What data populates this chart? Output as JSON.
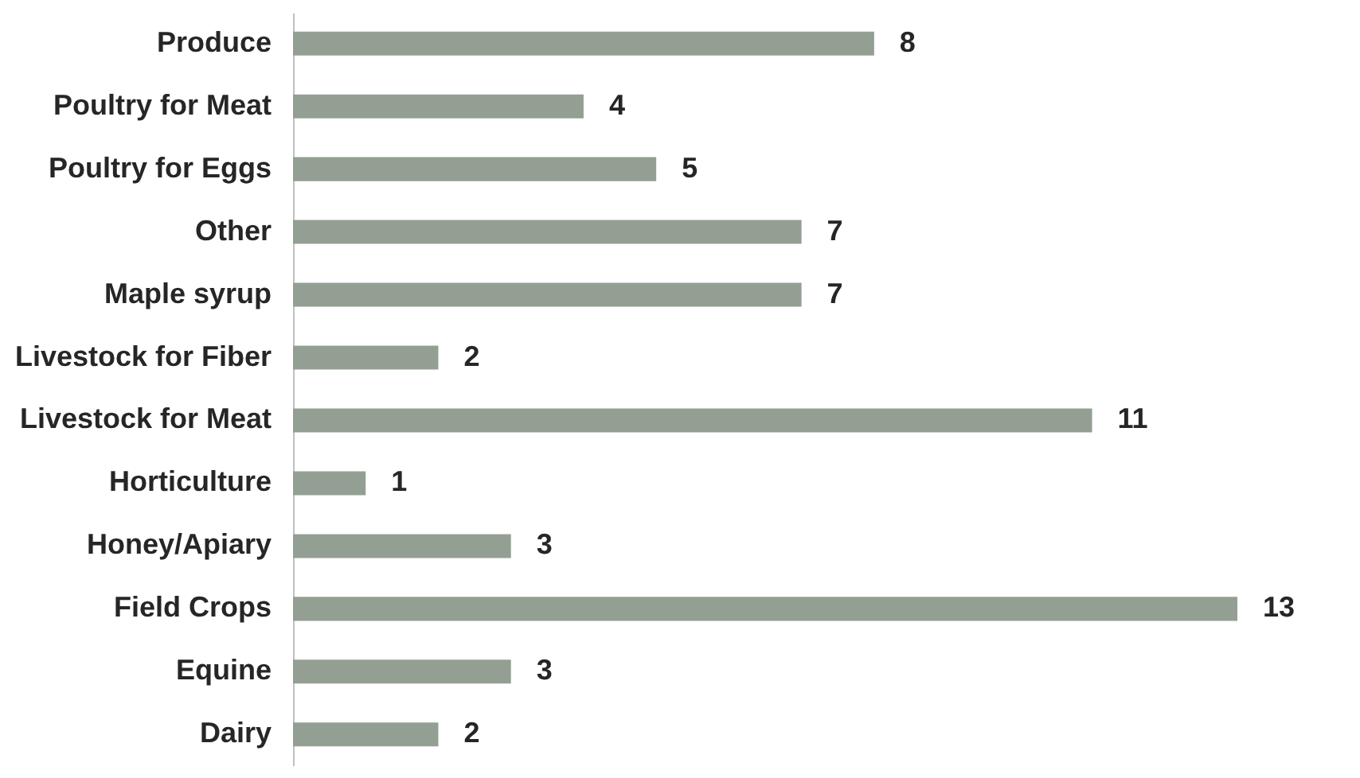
{
  "chart_data": {
    "type": "bar",
    "orientation": "horizontal",
    "categories": [
      "Produce",
      "Poultry for Meat",
      "Poultry for Eggs",
      "Other",
      "Maple syrup",
      "Livestock for Fiber",
      "Livestock for Meat",
      "Horticulture",
      "Honey/Apiary",
      "Field Crops",
      "Equine",
      "Dairy"
    ],
    "values": [
      8,
      4,
      5,
      7,
      7,
      2,
      11,
      1,
      3,
      13,
      3,
      2
    ],
    "color": "#939f92",
    "data_labels": true
  }
}
